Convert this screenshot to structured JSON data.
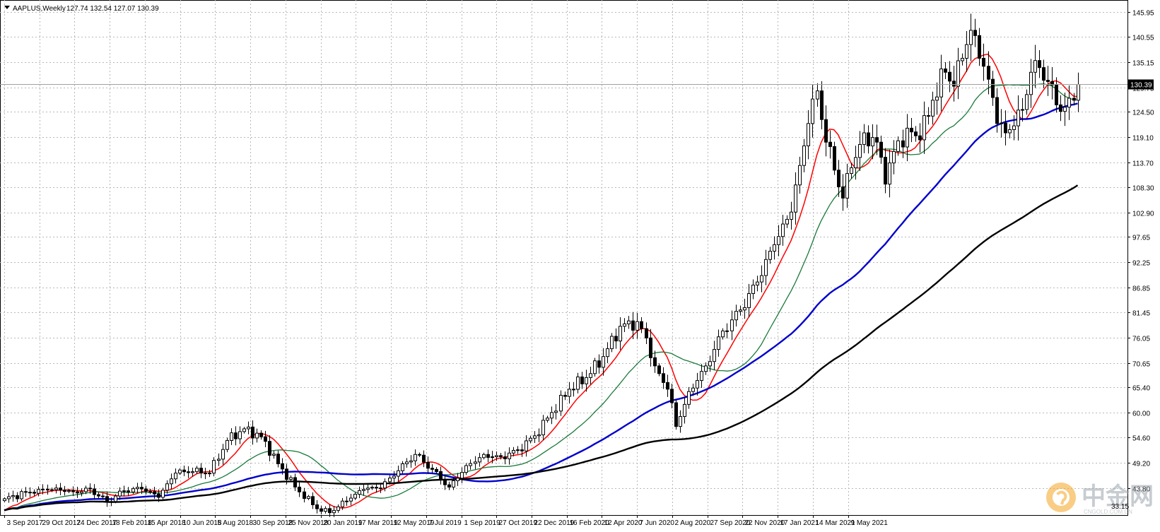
{
  "header": {
    "symbol": "AAPLUS,Weekly",
    "ohlc": "127.74 132.54 127.07 130.39"
  },
  "watermark": {
    "name": "中金网",
    "domain": "CNGOLD.COM.CN",
    "logo_icon": "cngold-logo-icon",
    "small_text": "33.15"
  },
  "colors": {
    "bull_candle": "#ffffff",
    "bear_candle": "#000000",
    "ma_fast": "#ff0000",
    "ma_mid": "#1a7a3a",
    "ma_slow": "#0000cc",
    "ma_long": "#000000",
    "grid": "#b8b8b8",
    "logo_orange": "#f5a623"
  },
  "chart_data": {
    "type": "candlestick",
    "title": "AAPLUS,Weekly",
    "last_price": 130.39,
    "last_price_label": "130.39",
    "ylim": [
      38.0,
      148.5
    ],
    "y_ticks": [
      "145.95",
      "140.55",
      "135.15",
      "129.75",
      "124.50",
      "119.10",
      "113.70",
      "108.30",
      "102.90",
      "97.65",
      "92.25",
      "86.85",
      "81.45",
      "76.05",
      "70.65",
      "65.40",
      "60.00",
      "54.60",
      "49.20",
      "43.80"
    ],
    "x_ticks": [
      "3 Sep 2017",
      "29 Oct 2017",
      "24 Dec 2017",
      "18 Feb 2018",
      "15 Apr 2018",
      "10 Jun 2018",
      "5 Aug 2018",
      "30 Sep 2018",
      "25 Nov 2018",
      "20 Jan 2019",
      "17 Mar 2019",
      "12 May 2019",
      "7 Jul 2019",
      "1 Sep 2019",
      "27 Oct 2019",
      "22 Dec 2019",
      "16 Feb 2020",
      "12 Apr 2020",
      "7 Jun 2020",
      "2 Aug 2020",
      "27 Sep 2020",
      "22 Nov 2020",
      "17 Jan 2021",
      "14 Mar 2021",
      "9 May 2021"
    ],
    "close_anchors": [
      [
        0,
        41.5
      ],
      [
        8,
        43.5
      ],
      [
        12,
        43.8
      ],
      [
        16,
        43.0
      ],
      [
        20,
        43.6
      ],
      [
        24,
        40.8
      ],
      [
        28,
        43.2
      ],
      [
        32,
        43.6
      ],
      [
        36,
        41.8
      ],
      [
        40,
        47.0
      ],
      [
        44,
        47.3
      ],
      [
        48,
        47.0
      ],
      [
        52,
        54.0
      ],
      [
        56,
        56.5
      ],
      [
        60,
        54.8
      ],
      [
        64,
        49.0
      ],
      [
        68,
        44.0
      ],
      [
        72,
        40.2
      ],
      [
        74,
        38.8
      ],
      [
        76,
        38.5
      ],
      [
        80,
        41.0
      ],
      [
        84,
        43.5
      ],
      [
        88,
        43.8
      ],
      [
        92,
        47.5
      ],
      [
        96,
        51.0
      ],
      [
        100,
        47.8
      ],
      [
        104,
        44.0
      ],
      [
        108,
        48.6
      ],
      [
        112,
        51.0
      ],
      [
        116,
        50.5
      ],
      [
        120,
        52.0
      ],
      [
        124,
        55.0
      ],
      [
        128,
        60.0
      ],
      [
        132,
        65.0
      ],
      [
        136,
        67.5
      ],
      [
        140,
        72.0
      ],
      [
        144,
        78.5
      ],
      [
        148,
        79.5
      ],
      [
        150,
        76.0
      ],
      [
        152,
        70.0
      ],
      [
        155,
        65.0
      ],
      [
        157,
        57.0
      ],
      [
        160,
        64.5
      ],
      [
        164,
        70.0
      ],
      [
        168,
        77.5
      ],
      [
        172,
        82.0
      ],
      [
        176,
        88.0
      ],
      [
        180,
        96.0
      ],
      [
        184,
        103.0
      ],
      [
        186,
        113.0
      ],
      [
        188,
        122.0
      ],
      [
        190,
        129.0
      ],
      [
        192,
        118.0
      ],
      [
        194,
        112.0
      ],
      [
        196,
        106.0
      ],
      [
        198,
        112.5
      ],
      [
        201,
        120.0
      ],
      [
        204,
        118.0
      ],
      [
        206,
        109.0
      ],
      [
        208,
        116.0
      ],
      [
        211,
        121.0
      ],
      [
        214,
        118.5
      ],
      [
        217,
        127.0
      ],
      [
        220,
        133.0
      ],
      [
        222,
        130.0
      ],
      [
        224,
        136.0
      ],
      [
        226,
        142.0
      ],
      [
        228,
        136.0
      ],
      [
        230,
        131.5
      ],
      [
        232,
        122.0
      ],
      [
        234,
        120.0
      ],
      [
        236,
        121.5
      ],
      [
        238,
        125.0
      ],
      [
        240,
        133.0
      ],
      [
        242,
        134.0
      ],
      [
        244,
        131.0
      ],
      [
        246,
        126.0
      ],
      [
        248,
        125.5
      ],
      [
        250,
        127.0
      ],
      [
        251,
        130.39
      ]
    ],
    "series": [
      {
        "name": "",
        "role": "ma_fast",
        "period": 8
      },
      {
        "name": "",
        "role": "ma_mid",
        "period": 21
      },
      {
        "name": "",
        "role": "ma_slow",
        "period": 50
      },
      {
        "name": "",
        "role": "ma_long",
        "period": 100
      }
    ],
    "grid": true,
    "price_axis": "right"
  }
}
